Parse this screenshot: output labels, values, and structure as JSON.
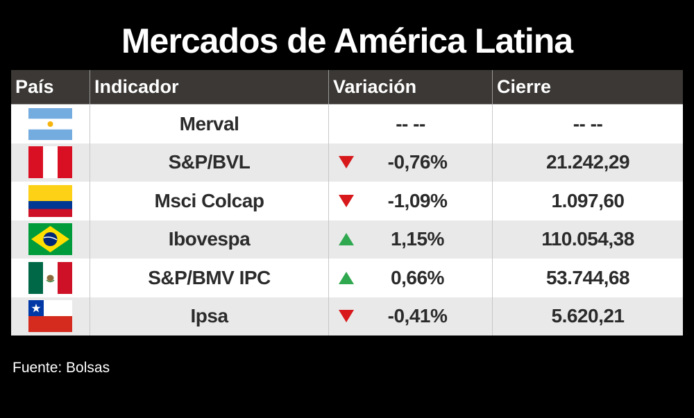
{
  "title": "Mercados de América Latina",
  "headers": {
    "country": "País",
    "indicator": "Indicador",
    "variation": "Variación",
    "close": "Cierre"
  },
  "rows": [
    {
      "flag": "argentina-flag-icon",
      "indicator": "Merval",
      "direction": "none",
      "variation": "-- --",
      "close": "-- --"
    },
    {
      "flag": "peru-flag-icon",
      "indicator": "S&P/BVL",
      "direction": "down",
      "variation": "-0,76%",
      "close": "21.242,29"
    },
    {
      "flag": "colombia-flag-icon",
      "indicator": "Msci Colcap",
      "direction": "down",
      "variation": "-1,09%",
      "close": "1.097,60"
    },
    {
      "flag": "brazil-flag-icon",
      "indicator": "Ibovespa",
      "direction": "up",
      "variation": "1,15%",
      "close": "110.054,38"
    },
    {
      "flag": "mexico-flag-icon",
      "indicator": "S&P/BMV IPC",
      "direction": "up",
      "variation": "0,66%",
      "close": "53.744,68"
    },
    {
      "flag": "chile-flag-icon",
      "indicator": "Ipsa",
      "direction": "down",
      "variation": "-0,41%",
      "close": "5.620,21"
    }
  ],
  "colors": {
    "down": "#d7191c",
    "up": "#2fa84f",
    "header_bg": "#3b3835"
  },
  "source": "Fuente: Bolsas"
}
